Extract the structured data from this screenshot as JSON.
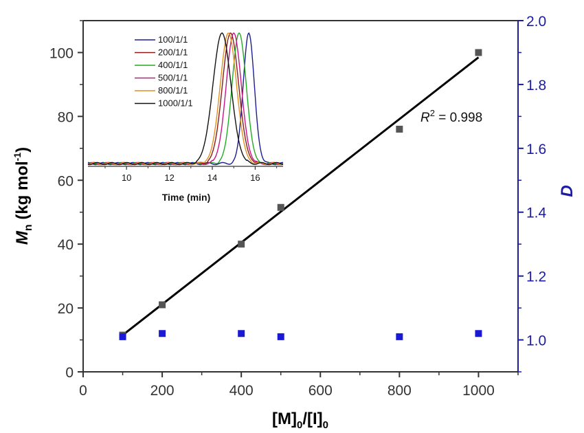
{
  "chart_data": [
    {
      "type": "scatter",
      "xlabel": {
        "main": "[M]",
        "sub1": "0",
        "mid": "/[I]",
        "sub2": "0"
      },
      "ylabel_left": {
        "main": "M",
        "sub": "n",
        "rest": " (kg mol",
        "sup": "-1",
        "end": ")"
      },
      "ylabel_right": "D",
      "xlim": [
        0,
        1100
      ],
      "ylim_left": [
        0,
        110
      ],
      "ylim_right": [
        0.9,
        2.0
      ],
      "x_ticks": [
        "0",
        "200",
        "400",
        "600",
        "800",
        "1000"
      ],
      "y_left_ticks": [
        "0",
        "20",
        "40",
        "60",
        "80",
        "100"
      ],
      "y_right_ticks": [
        "1.0",
        "1.2",
        "1.4",
        "1.6",
        "1.8",
        "2.0"
      ],
      "annotation": {
        "prefix": "R",
        "sup": "2",
        "rest": " = 0.998"
      },
      "series": [
        {
          "name": "Mn",
          "axis": "left",
          "color": "#555555",
          "x": [
            100,
            200,
            400,
            500,
            800,
            1000
          ],
          "y": [
            11.5,
            21,
            40,
            51.5,
            76,
            100
          ]
        },
        {
          "name": "D",
          "axis": "right",
          "color": "#1a1ad6",
          "x": [
            100,
            200,
            400,
            500,
            800,
            1000
          ],
          "y": [
            1.01,
            1.02,
            1.02,
            1.01,
            1.01,
            1.02
          ]
        }
      ],
      "fit_line": {
        "x": [
          100,
          1000
        ],
        "y": [
          11.5,
          98.5
        ],
        "color": "#000000"
      }
    },
    {
      "type": "line",
      "title": "inset",
      "xlabel": "Time (min)",
      "xlim": [
        8.2,
        17.3
      ],
      "x_ticks": [
        "10",
        "12",
        "14",
        "16"
      ],
      "baseline": 0.05,
      "series": [
        {
          "name": "100/1/1",
          "color": "#1c1c8f",
          "peak": 15.7,
          "sigma": 0.26
        },
        {
          "name": "200/1/1",
          "color": "#8b1a1a",
          "peak": 14.85,
          "sigma": 0.38
        },
        {
          "name": "400/1/1",
          "color": "#22aa22",
          "peak": 15.25,
          "sigma": 0.33
        },
        {
          "name": "500/1/1",
          "color": "#c71585",
          "peak": 15.0,
          "sigma": 0.35
        },
        {
          "name": "800/1/1",
          "color": "#e09020",
          "peak": 14.75,
          "sigma": 0.38
        },
        {
          "name": "1000/1/1",
          "color": "#111111",
          "peak": 14.45,
          "sigma": 0.42
        }
      ]
    }
  ]
}
